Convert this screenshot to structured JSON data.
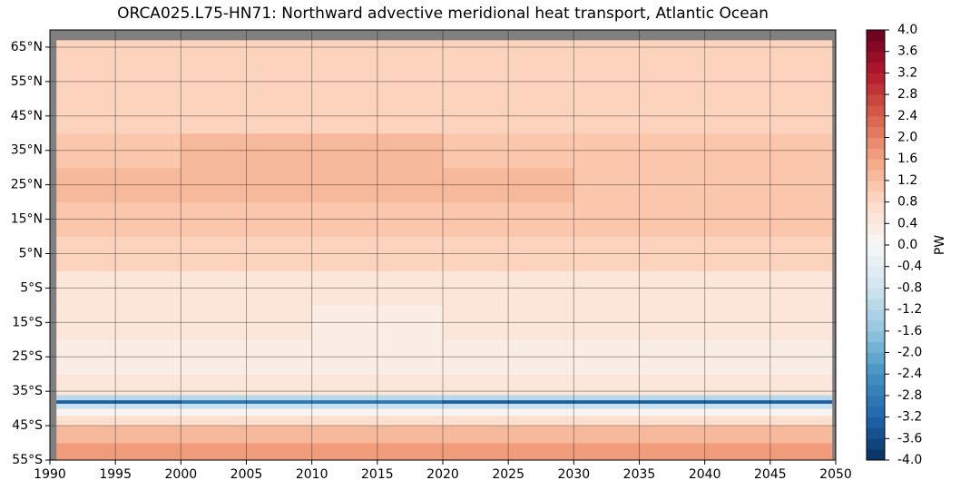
{
  "chart_data": {
    "type": "heatmap",
    "title": "ORCA025.L75-HN71: Northward advective meridional heat transport, Atlantic Ocean",
    "xlim": [
      1990,
      2050
    ],
    "xticks": [
      1990,
      1995,
      2000,
      2005,
      2010,
      2015,
      2020,
      2025,
      2030,
      2035,
      2040,
      2045,
      2050
    ],
    "ylim": [
      -55,
      70
    ],
    "yticks": [
      {
        "value": -55,
        "label": "55°S"
      },
      {
        "value": -45,
        "label": "45°S"
      },
      {
        "value": -35,
        "label": "35°S"
      },
      {
        "value": -25,
        "label": "25°S"
      },
      {
        "value": -15,
        "label": "15°S"
      },
      {
        "value": -5,
        "label": "5°S"
      },
      {
        "value": 5,
        "label": "5°N"
      },
      {
        "value": 15,
        "label": "15°N"
      },
      {
        "value": 25,
        "label": "25°N"
      },
      {
        "value": 35,
        "label": "35°N"
      },
      {
        "value": 45,
        "label": "45°N"
      },
      {
        "value": 55,
        "label": "55°N"
      },
      {
        "value": 65,
        "label": "65°N"
      }
    ],
    "grid": true,
    "x_edges": [
      1990.5,
      2000,
      2010,
      2020,
      2030,
      2040,
      2049.7
    ],
    "y_edges": [
      -55,
      -50,
      -45,
      -42,
      -40,
      -38.5,
      -37.5,
      -36,
      -30,
      -20,
      -10,
      0,
      10,
      20,
      30,
      40,
      50,
      60,
      67
    ],
    "z": [
      [
        1.6,
        1.7,
        1.6,
        1.7,
        1.7,
        1.6
      ],
      [
        1.2,
        1.3,
        1.2,
        1.3,
        1.2,
        1.2
      ],
      [
        0.6,
        0.6,
        0.6,
        0.6,
        0.6,
        0.6
      ],
      [
        0.1,
        0.1,
        0.1,
        0.1,
        0.1,
        0.1
      ],
      [
        -1.0,
        -1.0,
        -1.0,
        -1.0,
        -1.0,
        -1.0
      ],
      [
        -3.2,
        -3.0,
        -3.0,
        -3.2,
        -3.2,
        -3.2
      ],
      [
        -1.2,
        -1.2,
        -1.2,
        -1.2,
        -1.2,
        -1.2
      ],
      [
        0.5,
        0.5,
        0.5,
        0.5,
        0.5,
        0.5
      ],
      [
        0.3,
        0.3,
        0.3,
        0.3,
        0.3,
        0.3
      ],
      [
        0.4,
        0.4,
        0.3,
        0.4,
        0.4,
        0.4
      ],
      [
        0.5,
        0.5,
        0.5,
        0.5,
        0.5,
        0.5
      ],
      [
        0.8,
        0.8,
        0.8,
        0.8,
        0.8,
        0.8
      ],
      [
        1.0,
        1.0,
        1.0,
        1.0,
        1.0,
        1.0
      ],
      [
        1.2,
        1.2,
        1.2,
        1.2,
        1.0,
        1.0
      ],
      [
        1.1,
        1.2,
        1.2,
        1.1,
        1.0,
        1.0
      ],
      [
        0.9,
        0.9,
        0.9,
        0.9,
        0.9,
        0.9
      ],
      [
        0.8,
        0.8,
        0.8,
        0.8,
        0.8,
        0.8
      ],
      [
        0.8,
        0.8,
        0.8,
        0.8,
        0.8,
        0.8
      ]
    ],
    "missing_color": "#808080",
    "colormap": [
      "#053061",
      "#2166ac",
      "#4393c3",
      "#92c5de",
      "#d1e5f0",
      "#f7f7f7",
      "#fddbc7",
      "#f4a582",
      "#d6604d",
      "#b2182b",
      "#67001f"
    ],
    "clim": [
      -4,
      4
    ],
    "colorbar_label": "PW",
    "colorbar_ticks": [
      {
        "value": 4,
        "label": "4.0"
      },
      3.6,
      3.2,
      2.8,
      2.4,
      {
        "value": 2,
        "label": "2.0"
      },
      1.6,
      1.2,
      0.8,
      0.4,
      {
        "value": 0,
        "label": "0.0"
      },
      -0.4,
      -0.8,
      -1.2,
      -1.6,
      {
        "value": -2,
        "label": "-2.0"
      },
      -2.4,
      -2.8,
      -3.2,
      -3.6,
      {
        "value": -4,
        "label": "-4.0"
      }
    ]
  }
}
